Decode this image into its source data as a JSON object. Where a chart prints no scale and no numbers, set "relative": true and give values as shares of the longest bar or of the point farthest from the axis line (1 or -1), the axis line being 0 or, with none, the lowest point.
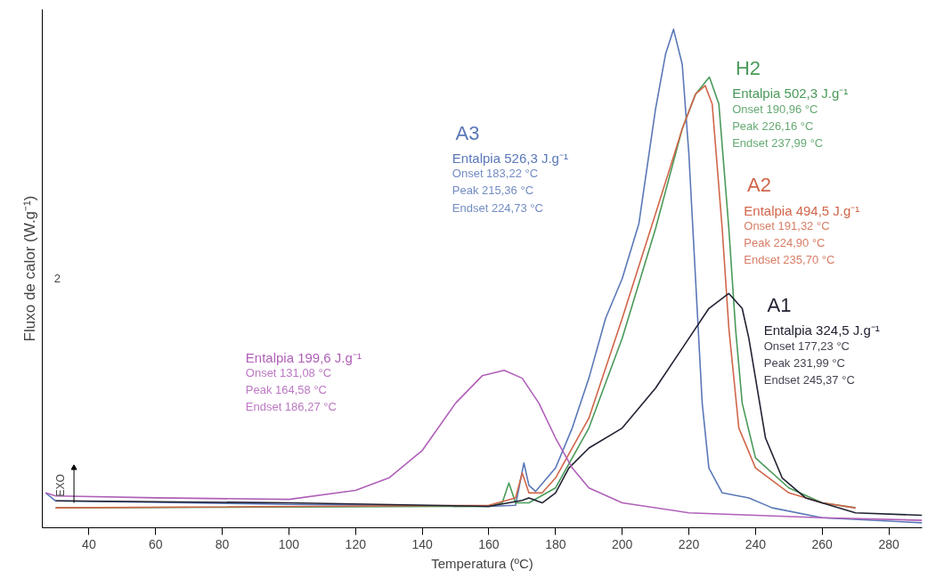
{
  "chart_data": {
    "type": "line",
    "relative": true,
    "xlabel": "Temperatura (ºC)",
    "ylabel": "Fluxo de calor (W.g⁻¹)",
    "xlim": [
      26,
      290
    ],
    "xticks": [
      40,
      60,
      80,
      100,
      120,
      140,
      160,
      180,
      200,
      220,
      240,
      260,
      280
    ],
    "tick_labels": "x",
    "grid": false,
    "marker": "none",
    "line_style": "solid",
    "series": [
      {
        "name": "A3",
        "color": "#5a78b8",
        "x": [
          27,
          30,
          100,
          160,
          168,
          170.5,
          172,
          174,
          180,
          185,
          190,
          195,
          200,
          205,
          210,
          213,
          215.4,
          218,
          220,
          222,
          224,
          226,
          230,
          238,
          245,
          260,
          290
        ],
        "values": [
          0.07,
          0.054,
          0.047,
          0.043,
          0.045,
          0.13,
          0.085,
          0.073,
          0.12,
          0.2,
          0.3,
          0.42,
          0.5,
          0.61,
          0.84,
          0.95,
          1.0,
          0.93,
          0.75,
          0.5,
          0.25,
          0.12,
          0.07,
          0.06,
          0.04,
          0.02,
          0.01
        ]
      },
      {
        "name": "H2",
        "color": "#4a9a5a",
        "x": [
          30,
          160,
          164,
          166,
          168,
          172,
          180,
          190,
          200,
          210,
          218,
          222,
          226.16,
          229,
          232,
          234,
          236,
          240,
          250,
          260,
          270
        ],
        "values": [
          0.04,
          0.043,
          0.05,
          0.09,
          0.05,
          0.05,
          0.08,
          0.2,
          0.38,
          0.6,
          0.8,
          0.87,
          0.904,
          0.85,
          0.6,
          0.4,
          0.25,
          0.14,
          0.08,
          0.05,
          0.04
        ]
      },
      {
        "name": "A2",
        "color": "#d0664a",
        "x": [
          30,
          160,
          168,
          170,
          172,
          176,
          180,
          190,
          200,
          210,
          218,
          222,
          224.9,
          227,
          230,
          232,
          235,
          240,
          250,
          260,
          270
        ],
        "values": [
          0.04,
          0.045,
          0.06,
          0.11,
          0.07,
          0.07,
          0.1,
          0.22,
          0.42,
          0.63,
          0.8,
          0.87,
          0.887,
          0.85,
          0.6,
          0.4,
          0.2,
          0.12,
          0.07,
          0.05,
          0.04
        ]
      },
      {
        "name": "A1",
        "color": "#222233",
        "x": [
          30,
          100,
          160,
          170,
          172,
          176,
          180,
          184,
          190,
          200,
          210,
          220,
          226,
          231.99,
          236,
          238,
          240,
          243,
          248,
          255,
          270,
          290
        ],
        "values": [
          0.054,
          0.05,
          0.043,
          0.055,
          0.06,
          0.05,
          0.07,
          0.12,
          0.16,
          0.2,
          0.28,
          0.38,
          0.44,
          0.47,
          0.44,
          0.38,
          0.3,
          0.18,
          0.1,
          0.06,
          0.03,
          0.025
        ]
      },
      {
        "color": "#b060b8",
        "x": [
          27,
          30,
          60,
          100,
          120,
          130,
          140,
          150,
          158,
          164.58,
          170,
          175,
          180,
          185,
          190,
          200,
          220,
          260,
          290
        ],
        "values": [
          0.07,
          0.064,
          0.06,
          0.057,
          0.075,
          0.1,
          0.155,
          0.25,
          0.305,
          0.316,
          0.3,
          0.25,
          0.18,
          0.12,
          0.08,
          0.05,
          0.03,
          0.02,
          0.015
        ]
      }
    ],
    "annotations": [
      "Entalpia  526,3 J.g⁻¹",
      "Onset            183,22 °C",
      "Peak             215,36 °C",
      "Endset          224,73 °C",
      "Entalpia  502,3 J.g⁻¹",
      "Onset            190,96 °C",
      "Peak             226,16 °C",
      "Endset          237,99 °C",
      "Entalpia  494,5 J.g⁻¹",
      "Onset            191,32 °C",
      "Peak             224,90 °C",
      "Endset          235,70 °C",
      "Entalpia  324,5 J.g⁻¹",
      "Onset            177,23 °C",
      "Peak             231,99 °C",
      "Endset          245,37 °C",
      "Entalpia  199,6 J.g⁻¹",
      "Onset            131,08 °C",
      "Peak             164,58 °C",
      "Endset          186,27 °C",
      "2",
      "EXO"
    ]
  }
}
